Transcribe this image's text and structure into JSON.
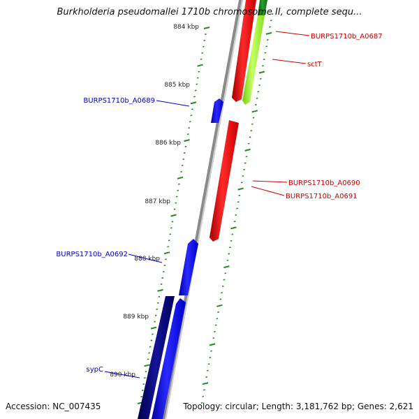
{
  "title": "Burkholderia pseudomallei 1710b chromosome II, complete sequ...",
  "footer": {
    "accession": "Accession: NC_007435",
    "summary": "Topology: circular; Length: 3,181,762 bp; Genes: 2,621"
  },
  "tick_labels": [
    "884 kbp",
    "885 kbp",
    "886 kbp",
    "887 kbp",
    "888 kbp",
    "889 kbp",
    "890 kbp"
  ],
  "genes": [
    {
      "name": "BURPS1710b_A0687",
      "strand": "forward",
      "color": "#ff0000"
    },
    {
      "name": "sctT",
      "strand": "forward",
      "color": "#a8ff33"
    },
    {
      "name": "BURPS1710b_A0689",
      "strand": "reverse",
      "color": "#0000ff"
    },
    {
      "name": "BURPS1710b_A0690",
      "strand": "forward",
      "color": "#ff0000"
    },
    {
      "name": "BURPS1710b_A0691",
      "strand": "forward",
      "color": "#ff0000"
    },
    {
      "name": "BURPS1710b_A0692",
      "strand": "reverse",
      "color": "#0000ff"
    },
    {
      "name": "sypC",
      "strand": "reverse",
      "color": "#00007a"
    }
  ],
  "colors": {
    "forward_label": "#cc0000",
    "reverse_label": "#0000cc",
    "backbone": "#888888",
    "ticks": "#228b22"
  }
}
